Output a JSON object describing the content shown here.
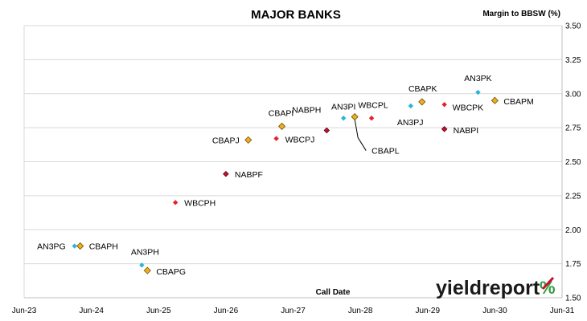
{
  "chart_data": {
    "type": "scatter",
    "title": "MAJOR BANKS",
    "ylabel": "Margin to BBSW (%)",
    "xlabel": "Call Date",
    "ylim": [
      1.5,
      3.5
    ],
    "yticks": [
      "1.50",
      "1.75",
      "2.00",
      "2.25",
      "2.50",
      "2.75",
      "3.00",
      "3.25",
      "3.50"
    ],
    "xlim": [
      "2023-06",
      "2031-06"
    ],
    "xticks": [
      "Jun-23",
      "Jun-24",
      "Jun-25",
      "Jun-26",
      "Jun-27",
      "Jun-28",
      "Jun-29",
      "Jun-30",
      "Jun-31"
    ],
    "grid": "horizontal",
    "colors": {
      "ANZ": "#29b6d8",
      "CBA": "#f0b01e",
      "NAB": "#c8102e",
      "WBC": "#e8202a"
    },
    "points": [
      {
        "name": "AN3PG",
        "issuer": "ANZ",
        "x": "2024-03",
        "y": 1.88
      },
      {
        "name": "CBAPH",
        "issuer": "CBA",
        "x": "2024-04",
        "y": 1.88
      },
      {
        "name": "AN3PH",
        "issuer": "ANZ",
        "x": "2025-03",
        "y": 1.74
      },
      {
        "name": "CBAPG",
        "issuer": "CBA",
        "x": "2025-04",
        "y": 1.7
      },
      {
        "name": "WBCPH",
        "issuer": "WBC",
        "x": "2025-09",
        "y": 2.2
      },
      {
        "name": "NABPF",
        "issuer": "NAB",
        "x": "2026-06",
        "y": 2.41
      },
      {
        "name": "CBAPJ",
        "issuer": "CBA",
        "x": "2026-10",
        "y": 2.66
      },
      {
        "name": "WBCPJ",
        "issuer": "WBC",
        "x": "2027-03",
        "y": 2.67
      },
      {
        "name": "CBAPI",
        "issuer": "CBA",
        "x": "2027-04",
        "y": 2.76
      },
      {
        "name": "NABPH",
        "issuer": "NAB",
        "x": "2027-12",
        "y": 2.73
      },
      {
        "name": "AN3PI",
        "issuer": "ANZ",
        "x": "2028-03",
        "y": 2.82
      },
      {
        "name": "CBAPL",
        "issuer": "CBA",
        "x": "2028-05",
        "y": 2.83
      },
      {
        "name": "WBCPL",
        "issuer": "WBC",
        "x": "2028-08",
        "y": 2.82
      },
      {
        "name": "AN3PJ",
        "issuer": "ANZ",
        "x": "2029-03",
        "y": 2.91
      },
      {
        "name": "CBAPK",
        "issuer": "CBA",
        "x": "2029-05",
        "y": 2.94
      },
      {
        "name": "WBCPK",
        "issuer": "WBC",
        "x": "2029-09",
        "y": 2.92
      },
      {
        "name": "NABPI",
        "issuer": "NAB",
        "x": "2029-09",
        "y": 2.74
      },
      {
        "name": "AN3PK",
        "issuer": "ANZ",
        "x": "2030-03",
        "y": 3.01
      },
      {
        "name": "CBAPM",
        "issuer": "CBA",
        "x": "2030-06",
        "y": 2.95
      }
    ]
  },
  "logo": {
    "text": "yieldreport",
    "symbol": "%"
  }
}
